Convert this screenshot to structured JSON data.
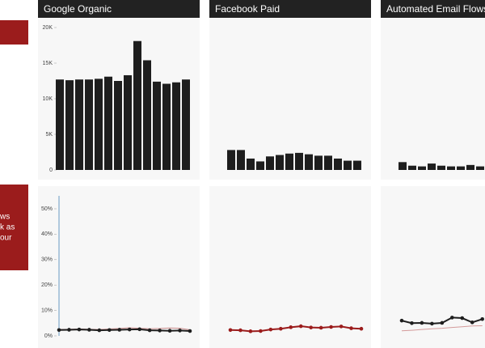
{
  "sidebar": {
    "blocks": [
      {
        "lines": []
      },
      {
        "lines": [
          "ws",
          "k as",
          "our"
        ]
      }
    ]
  },
  "chart_data": [
    {
      "type": "bar",
      "title": "Google Organic",
      "color": "#1e1e1e",
      "values": [
        12700,
        12600,
        12700,
        12700,
        12800,
        13100,
        12500,
        13300,
        18100,
        15400,
        12400,
        12100,
        12300,
        12700
      ],
      "ylim": [
        0,
        20000
      ],
      "yticks": [
        0,
        {
          "value": 5000,
          "label": "5K"
        },
        {
          "value": 10000,
          "label": "10K"
        },
        {
          "value": 15000,
          "label": "15K"
        },
        {
          "value": 20000,
          "label": "20K"
        }
      ]
    },
    {
      "type": "bar",
      "title": "Facebook Paid",
      "color": "#1e1e1e",
      "values": [
        2800,
        2800,
        1600,
        1200,
        1900,
        2100,
        2300,
        2400,
        2200,
        2000,
        2000,
        1600,
        1300,
        1300
      ],
      "ylim": [
        0,
        20000
      ]
    },
    {
      "type": "bar",
      "title": "Automated Email Flows",
      "color": "#1e1e1e",
      "values": [
        1100,
        600,
        500,
        900,
        600,
        500,
        500,
        700,
        500
      ],
      "ylim": [
        0,
        20000
      ]
    },
    {
      "type": "line",
      "ylim": [
        0,
        50
      ],
      "yticks": [
        {
          "value": 0,
          "label": "0%"
        },
        {
          "value": 10,
          "label": "10%"
        },
        {
          "value": 20,
          "label": "20%"
        },
        {
          "value": 30,
          "label": "30%"
        },
        {
          "value": 40,
          "label": "40%"
        },
        {
          "value": 50,
          "label": "50%"
        }
      ],
      "series": [
        {
          "color": "#c98a8a",
          "markers": false,
          "values": [
            2.5,
            2.6,
            2.7,
            2.6,
            2.5,
            2.7,
            2.9,
            3.2,
            3.0,
            2.8,
            2.9,
            3.1,
            3.0,
            2.4
          ]
        },
        {
          "color": "#1e1e1e",
          "markers": true,
          "values": [
            2.3,
            2.4,
            2.5,
            2.4,
            2.2,
            2.3,
            2.4,
            2.5,
            2.6,
            2.2,
            2.1,
            2.0,
            2.1,
            1.9
          ]
        }
      ]
    },
    {
      "type": "line",
      "ylim": [
        0,
        50
      ],
      "series": [
        {
          "color": "#9b1c1c",
          "markers": true,
          "values": [
            2.3,
            2.2,
            1.8,
            1.9,
            2.5,
            2.8,
            3.4,
            3.8,
            3.3,
            3.2,
            3.5,
            3.7,
            3.0,
            2.8
          ]
        }
      ]
    },
    {
      "type": "line",
      "ylim": [
        0,
        50
      ],
      "series": [
        {
          "color": "#d49a9a",
          "markers": false,
          "values": [
            2.0,
            2.2,
            2.5,
            2.8,
            3.0,
            3.3,
            3.6,
            3.9,
            4.0
          ]
        },
        {
          "color": "#1e1e1e",
          "markers": true,
          "values": [
            6.0,
            5.0,
            5.1,
            4.8,
            5.1,
            7.2,
            7.0,
            5.3,
            6.6
          ]
        }
      ]
    }
  ]
}
